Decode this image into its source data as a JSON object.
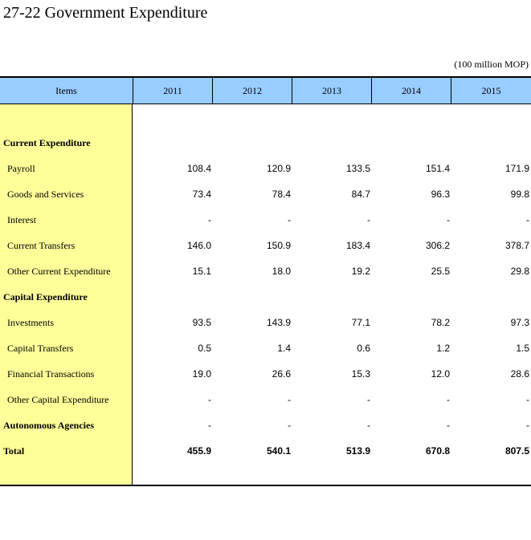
{
  "title": "27-22  Government Expenditure",
  "unit": "(100 million MOP)",
  "header": {
    "items": "Items",
    "years": [
      "2011",
      "2012",
      "2013",
      "2014",
      "2015"
    ]
  },
  "rows": [
    {
      "label": "Current Expenditure",
      "type": "section",
      "values": [
        "",
        "",
        "",
        "",
        ""
      ]
    },
    {
      "label": "Payroll",
      "type": "sub",
      "values": [
        "108.4",
        "120.9",
        "133.5",
        "151.4",
        "171.9"
      ]
    },
    {
      "label": "Goods and Services",
      "type": "sub",
      "values": [
        "73.4",
        "78.4",
        "84.7",
        "96.3",
        "99.8"
      ]
    },
    {
      "label": "Interest",
      "type": "sub",
      "values": [
        "-",
        "-",
        "-",
        "-",
        "-"
      ]
    },
    {
      "label": "Current Transfers",
      "type": "sub",
      "values": [
        "146.0",
        "150.9",
        "183.4",
        "306.2",
        "378.7"
      ]
    },
    {
      "label": "Other Current Expenditure",
      "type": "sub",
      "values": [
        "15.1",
        "18.0",
        "19.2",
        "25.5",
        "29.8"
      ]
    },
    {
      "label": "Capital Expenditure",
      "type": "section",
      "values": [
        "",
        "",
        "",
        "",
        ""
      ]
    },
    {
      "label": "Investments",
      "type": "sub",
      "values": [
        "93.5",
        "143.9",
        "77.1",
        "78.2",
        "97.3"
      ]
    },
    {
      "label": "Capital Transfers",
      "type": "sub",
      "values": [
        "0.5",
        "1.4",
        "0.6",
        "1.2",
        "1.5"
      ]
    },
    {
      "label": "Financial Transactions",
      "type": "sub",
      "values": [
        "19.0",
        "26.6",
        "15.3",
        "12.0",
        "28.6"
      ]
    },
    {
      "label": "Other Capital Expenditure",
      "type": "sub",
      "values": [
        "-",
        "-",
        "-",
        "-",
        "-"
      ]
    },
    {
      "label": "Autonomous Agencies",
      "type": "section",
      "values": [
        "-",
        "-",
        "-",
        "-",
        "-"
      ]
    },
    {
      "label": "Total",
      "type": "total",
      "values": [
        "455.9",
        "540.1",
        "513.9",
        "670.8",
        "807.5"
      ]
    }
  ],
  "colors": {
    "header_bg": "#99ccff",
    "items_bg": "#ffff99"
  }
}
